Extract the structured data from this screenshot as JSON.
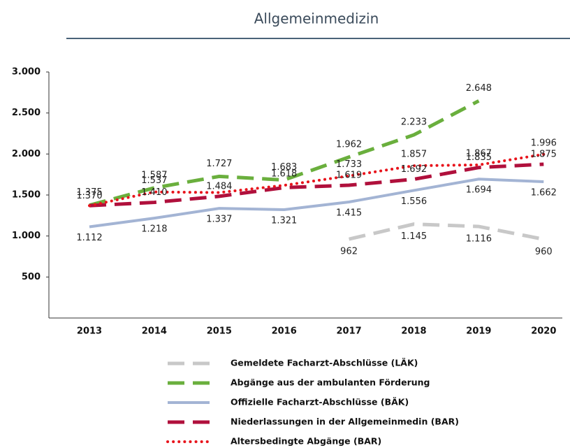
{
  "chart_data": {
    "type": "line",
    "title": "Allgemeinmedizin",
    "categories": [
      "2013",
      "2014",
      "2015",
      "2016",
      "2017",
      "2018",
      "2019",
      "2020"
    ],
    "ylim": [
      0,
      3000
    ],
    "yticks": [
      500,
      {
        "value": 1000,
        "label": "1.000"
      },
      {
        "value": 1500,
        "label": "1.500"
      },
      {
        "value": 2000,
        "label": "2.000"
      },
      {
        "value": 2500,
        "label": "2.500"
      },
      {
        "value": 3000,
        "label": "3.000"
      }
    ],
    "grid": false,
    "legend": "bottom",
    "series": [
      {
        "name": "Gemeldete Facharzt-Abschlüsse (LÄK)",
        "color": "#c8c8c8",
        "style": "dashed",
        "values": [
          null,
          null,
          null,
          null,
          962,
          1145,
          1116,
          960
        ],
        "value_labels": [
          null,
          null,
          null,
          null,
          "962",
          "1.145",
          "1.116",
          "960"
        ]
      },
      {
        "name": "Abgänge aus der ambulanten Förderung",
        "color": "#6aaf3d",
        "style": "dashed",
        "values": [
          1375,
          1587,
          1727,
          1683,
          1962,
          2233,
          2648,
          null
        ],
        "value_labels": [
          "1.375",
          "1.587",
          "1.727",
          "1.683",
          "1.962",
          "2.233",
          "2.648",
          null
        ]
      },
      {
        "name": "Offizielle Facharzt-Abschlüsse (BÄK)",
        "color": "#a3b4d4",
        "style": "solid",
        "values": [
          1112,
          1218,
          1337,
          1321,
          1415,
          1556,
          1694,
          1662
        ],
        "value_labels": [
          "1.112",
          "1.218",
          "1.337",
          "1.321",
          "1.415",
          "1.556",
          "1.694",
          "1.662"
        ]
      },
      {
        "name": "Niederlassungen in der Allgemeinmedin (BAR)",
        "color": "#b0103c",
        "style": "dashed",
        "values": [
          1370,
          1410,
          1484,
          1590,
          1619,
          1692,
          1835,
          1875
        ],
        "value_labels": [
          "1.370",
          "1.410",
          "1.484",
          null,
          "1.619",
          "1.692",
          "1.835",
          "1.875"
        ]
      },
      {
        "name": "Altersbedingte Abgänge (BAR)",
        "color": "#e8141c",
        "style": "dotted",
        "values": [
          1370,
          1537,
          1530,
          1618,
          1733,
          1857,
          1867,
          1996
        ],
        "value_labels": [
          null,
          "1.537",
          null,
          "1.618",
          "1.733",
          "1.857",
          "1.867",
          "1.996"
        ]
      }
    ]
  }
}
